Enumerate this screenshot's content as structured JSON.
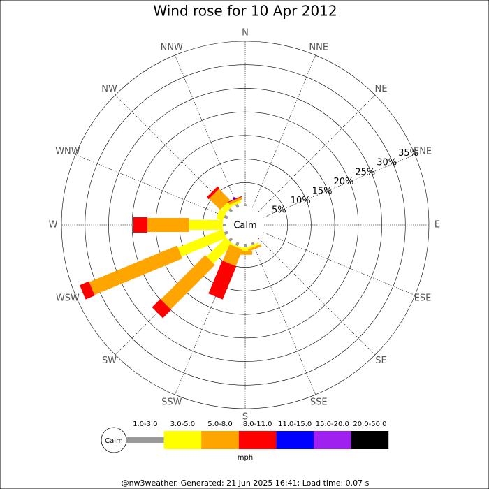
{
  "chart_data": {
    "type": "windrose",
    "title": "Wind rose for 10 Apr 2012",
    "categories": [
      "N",
      "NNE",
      "NE",
      "ENE",
      "E",
      "ESE",
      "SE",
      "SSE",
      "S",
      "SSW",
      "SW",
      "WSW",
      "W",
      "WNW",
      "NW",
      "NNW"
    ],
    "rlim": [
      0,
      35
    ],
    "rticks": [
      {
        "value": 5,
        "label": "5%"
      },
      {
        "value": 10,
        "label": "10%"
      },
      {
        "value": 15,
        "label": "15%"
      },
      {
        "value": 20,
        "label": "20%"
      },
      {
        "value": 25,
        "label": "25%"
      },
      {
        "value": 30,
        "label": "30%"
      },
      {
        "value": 35,
        "label": "35%"
      }
    ],
    "center_label": "Calm",
    "legend_title": "mph",
    "series": [
      {
        "name": "1.0-3.0",
        "color": "#999999",
        "values": [
          0.4,
          0,
          0,
          0,
          0,
          0,
          0,
          0.5,
          0.75,
          0.75,
          0.75,
          0.75,
          0.75,
          0.75,
          0.75,
          0.75
        ]
      },
      {
        "name": "3.0-5.0",
        "color": "#ffff00",
        "values": [
          0,
          0,
          0,
          0,
          0,
          0,
          0,
          0.5,
          0.8,
          0.3,
          5.8,
          10.3,
          7.2,
          1.5,
          1.3,
          0.5
        ]
      },
      {
        "name": "5.0-8.0",
        "color": "#ffa500",
        "values": [
          0,
          0,
          0,
          0,
          0,
          0,
          0,
          0.5,
          0.8,
          3.8,
          13.3,
          20.2,
          8.8,
          0,
          3.3,
          0.5
        ]
      },
      {
        "name": "8.0-11.0",
        "color": "#ff0000",
        "values": [
          0,
          0,
          0,
          0,
          0,
          0,
          0,
          0,
          0,
          7.6,
          2.5,
          2.1,
          3.0,
          0,
          0.6,
          0.2
        ]
      },
      {
        "name": "11.0-15.0",
        "color": "#0000ff",
        "values": [
          0,
          0,
          0,
          0,
          0,
          0,
          0,
          0,
          0,
          0,
          0,
          0,
          0,
          0,
          0,
          0.2
        ]
      },
      {
        "name": "15.0-20.0",
        "color": "#a020f0",
        "values": [
          0,
          0,
          0,
          0,
          0,
          0,
          0,
          0,
          0,
          0,
          0,
          0,
          0,
          0,
          0,
          0.2
        ]
      },
      {
        "name": "20.0-50.0",
        "color": "#000000",
        "values": [
          0,
          0,
          0,
          0,
          0,
          0,
          0,
          0,
          0,
          0,
          0,
          0,
          0,
          0,
          0,
          0
        ]
      }
    ],
    "footer": "@nw3weather. Generated: 21 Jun 2025 16:41; Load time: 0.07 s"
  }
}
